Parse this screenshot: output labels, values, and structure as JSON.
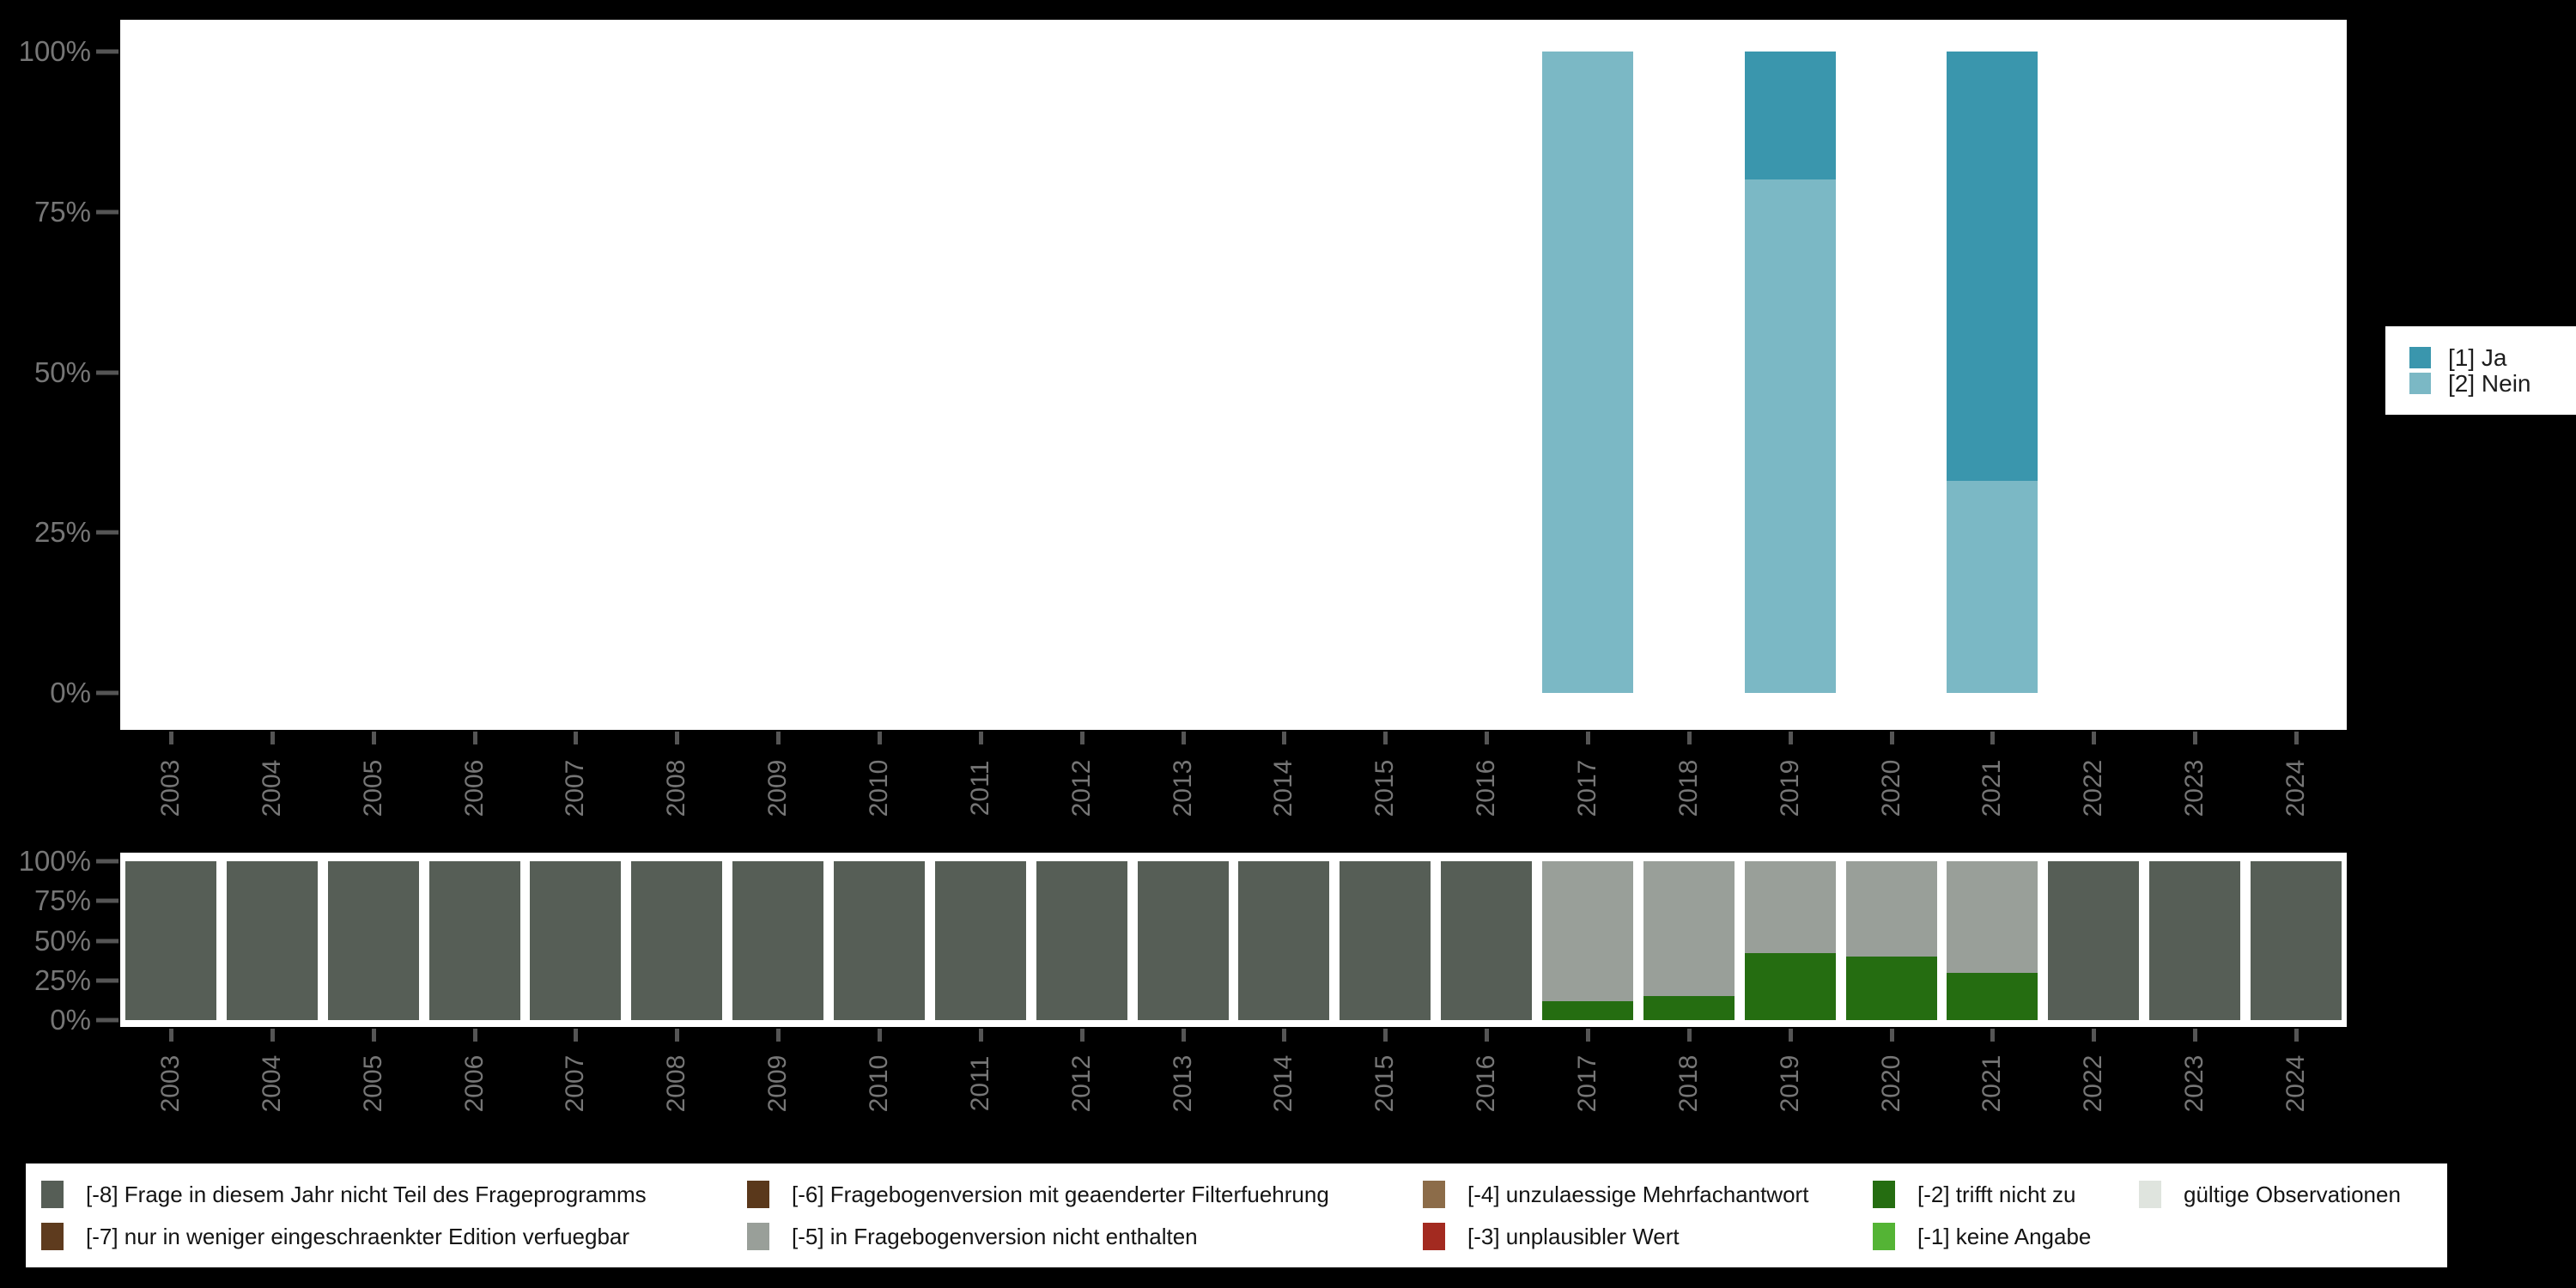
{
  "figure": {
    "background": "#000000",
    "panel_color": "#ffffff",
    "axis_text_color": "#767676",
    "tick_color": "#555555",
    "yticks": [
      "0%",
      "25%",
      "50%",
      "75%",
      "100%"
    ],
    "years": [
      "2003",
      "2004",
      "2005",
      "2006",
      "2007",
      "2008",
      "2009",
      "2010",
      "2011",
      "2012",
      "2013",
      "2014",
      "2015",
      "2016",
      "2017",
      "2018",
      "2019",
      "2020",
      "2021",
      "2022",
      "2023",
      "2024"
    ]
  },
  "top_legend": {
    "items": [
      {
        "label": "[1] Ja",
        "color": "#3a96ad"
      },
      {
        "label": "[2] Nein",
        "color": "#7bb8c5"
      }
    ]
  },
  "bottom_legend": {
    "columns": [
      {
        "items": [
          {
            "label": "[-8] Frage in diesem Jahr nicht Teil des Frageprogramms",
            "color": "#565e56"
          },
          {
            "label": "[-7] nur in weniger eingeschraenkter Edition verfuegbar",
            "color": "#5e3b1e"
          }
        ]
      },
      {
        "items": [
          {
            "label": "[-6] Fragebogenversion mit geaenderter Filterfuehrung",
            "color": "#5a381b"
          },
          {
            "label": "[-5] in Fragebogenversion nicht enthalten",
            "color": "#999f99"
          }
        ]
      },
      {
        "items": [
          {
            "label": "[-4] unzulaessige Mehrfachantwort",
            "color": "#8c6c49"
          },
          {
            "label": "[-3] unplausibler Wert",
            "color": "#a32a20"
          }
        ]
      },
      {
        "items": [
          {
            "label": "[-2] trifft nicht zu",
            "color": "#256d11"
          },
          {
            "label": "[-1] keine Angabe",
            "color": "#54b435"
          }
        ]
      },
      {
        "items": [
          {
            "label": "gültige Observationen",
            "color": "#dfe4de"
          }
        ]
      }
    ]
  },
  "chart_data": [
    {
      "type": "bar",
      "stacked": true,
      "units": "percent",
      "title": "",
      "xlabel": "",
      "ylabel": "",
      "ylim": [
        0,
        100
      ],
      "ytick_values": [
        0,
        25,
        50,
        75,
        100
      ],
      "grid": false,
      "legend_position": "right",
      "categories": [
        "2003",
        "2004",
        "2005",
        "2006",
        "2007",
        "2008",
        "2009",
        "2010",
        "2011",
        "2012",
        "2013",
        "2014",
        "2015",
        "2016",
        "2017",
        "2018",
        "2019",
        "2020",
        "2021",
        "2022",
        "2023",
        "2024"
      ],
      "series": [
        {
          "name": "[2] Nein",
          "color": "#7bb8c5",
          "values": [
            0,
            0,
            0,
            0,
            0,
            0,
            0,
            0,
            0,
            0,
            0,
            0,
            0,
            0,
            100,
            0,
            80,
            0,
            33,
            0,
            0,
            0
          ]
        },
        {
          "name": "[1] Ja",
          "color": "#3a96ad",
          "values": [
            0,
            0,
            0,
            0,
            0,
            0,
            0,
            0,
            0,
            0,
            0,
            0,
            0,
            0,
            0,
            0,
            20,
            0,
            67,
            0,
            0,
            0
          ]
        }
      ]
    },
    {
      "type": "bar",
      "stacked": true,
      "units": "percent",
      "title": "",
      "xlabel": "",
      "ylabel": "",
      "ylim": [
        0,
        100
      ],
      "ytick_values": [
        0,
        25,
        50,
        75,
        100
      ],
      "grid": false,
      "legend_position": "bottom",
      "categories": [
        "2003",
        "2004",
        "2005",
        "2006",
        "2007",
        "2008",
        "2009",
        "2010",
        "2011",
        "2012",
        "2013",
        "2014",
        "2015",
        "2016",
        "2017",
        "2018",
        "2019",
        "2020",
        "2021",
        "2022",
        "2023",
        "2024"
      ],
      "series": [
        {
          "name": "[-2] trifft nicht zu",
          "color": "#256d11",
          "values": [
            0,
            0,
            0,
            0,
            0,
            0,
            0,
            0,
            0,
            0,
            0,
            0,
            0,
            0,
            12,
            15,
            42,
            40,
            30,
            0,
            0,
            0
          ]
        },
        {
          "name": "[-5] in Fragebogenversion nicht enthalten",
          "color": "#999f99",
          "values": [
            0,
            0,
            0,
            0,
            0,
            0,
            0,
            0,
            0,
            0,
            0,
            0,
            0,
            0,
            88,
            85,
            58,
            60,
            70,
            0,
            0,
            0
          ]
        },
        {
          "name": "[-8] Frage in diesem Jahr nicht Teil des Frageprogramms",
          "color": "#565e56",
          "values": [
            100,
            100,
            100,
            100,
            100,
            100,
            100,
            100,
            100,
            100,
            100,
            100,
            100,
            100,
            0,
            0,
            0,
            0,
            0,
            100,
            100,
            100
          ]
        }
      ]
    }
  ]
}
